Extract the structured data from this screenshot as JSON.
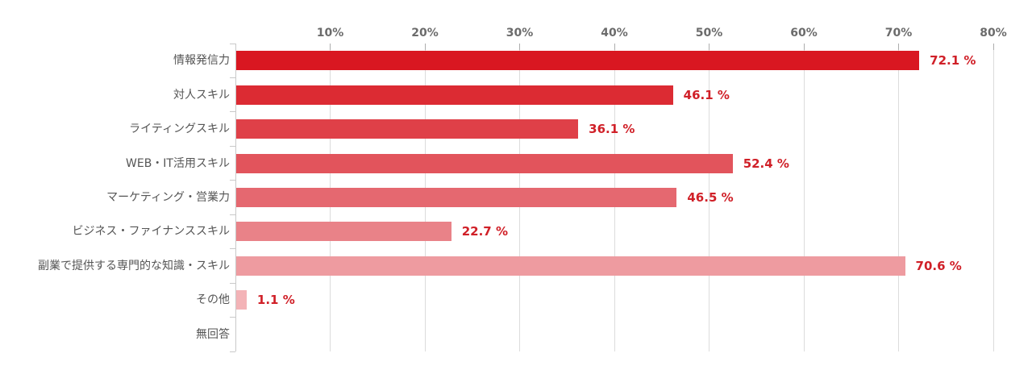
{
  "chart_data": {
    "type": "bar",
    "orientation": "horizontal",
    "title": "",
    "categories": [
      "情報発信力",
      "対人スキル",
      "ライティングスキル",
      "WEB・IT活用スキル",
      "マーケティング・営業力",
      "ビジネス・ファイナンススキル",
      "副業で提供する専門的な知識・スキル",
      "その他",
      "無回答"
    ],
    "values": [
      72.1,
      46.1,
      36.1,
      52.4,
      46.5,
      22.7,
      70.6,
      1.1,
      0
    ],
    "value_labels": [
      "72.1 %",
      "46.1 %",
      "36.1 %",
      "52.4 %",
      "46.5 %",
      "22.7 %",
      "70.6 %",
      "1.1 %",
      ""
    ],
    "bar_colors": [
      "#D91721",
      "#DC2B33",
      "#DF4048",
      "#E2545C",
      "#E56870",
      "#E98288",
      "#EE9BA0",
      "#F3B3B7",
      null
    ],
    "x_tick_labels": [
      "10%",
      "20%",
      "30%",
      "40%",
      "50%",
      "60%",
      "70%",
      "80%"
    ],
    "x_tick_values": [
      10,
      20,
      30,
      40,
      50,
      60,
      70,
      80
    ],
    "xlim": [
      0,
      80
    ],
    "grid": true,
    "legend": null,
    "colors": {
      "value_label": "#D02028",
      "tick_label": "#6B6B6B",
      "category_label": "#555555",
      "gridline": "#DCDCDC",
      "axis_line": "#C9C9C9",
      "tick_mark": "#ADADAD",
      "background": "#FFFFFF"
    }
  }
}
